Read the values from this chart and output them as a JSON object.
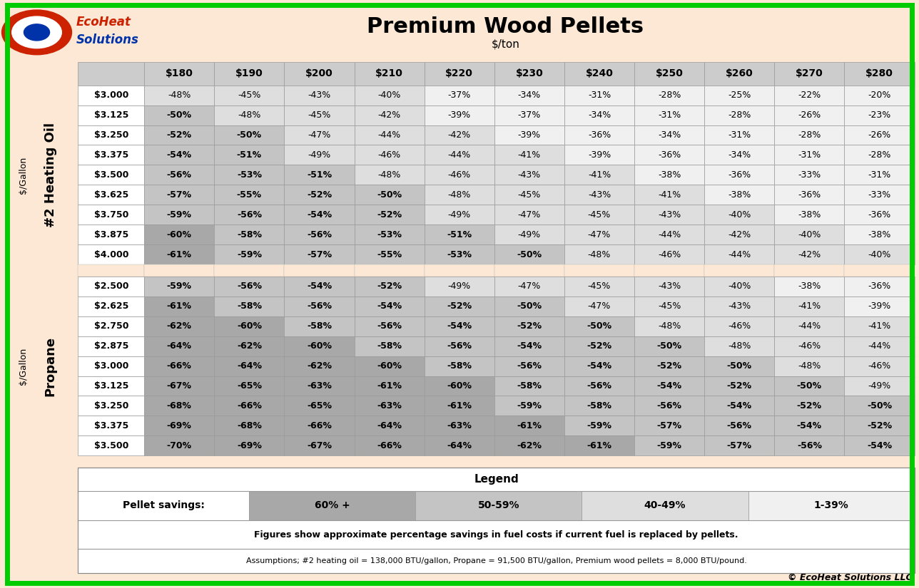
{
  "title": "Premium Wood Pellets",
  "subtitle": "$/ton",
  "background_color": "#fce8d5",
  "border_color": "#00cc00",
  "pellet_cols": [
    "$180",
    "$190",
    "$200",
    "$210",
    "$220",
    "$230",
    "$240",
    "$250",
    "$260",
    "$270",
    "$280"
  ],
  "oil_rows": [
    "$3.000",
    "$3.125",
    "$3.250",
    "$3.375",
    "$3.500",
    "$3.625",
    "$3.750",
    "$3.875",
    "$4.000"
  ],
  "propane_rows": [
    "$2.500",
    "$2.625",
    "$2.750",
    "$2.875",
    "$3.000",
    "$3.125",
    "$3.250",
    "$3.375",
    "$3.500"
  ],
  "oil_data": [
    [
      "-48%",
      "-45%",
      "-43%",
      "-40%",
      "-37%",
      "-34%",
      "-31%",
      "-28%",
      "-25%",
      "-22%",
      "-20%"
    ],
    [
      "-50%",
      "-48%",
      "-45%",
      "-42%",
      "-39%",
      "-37%",
      "-34%",
      "-31%",
      "-28%",
      "-26%",
      "-23%"
    ],
    [
      "-52%",
      "-50%",
      "-47%",
      "-44%",
      "-42%",
      "-39%",
      "-36%",
      "-34%",
      "-31%",
      "-28%",
      "-26%"
    ],
    [
      "-54%",
      "-51%",
      "-49%",
      "-46%",
      "-44%",
      "-41%",
      "-39%",
      "-36%",
      "-34%",
      "-31%",
      "-28%"
    ],
    [
      "-56%",
      "-53%",
      "-51%",
      "-48%",
      "-46%",
      "-43%",
      "-41%",
      "-38%",
      "-36%",
      "-33%",
      "-31%"
    ],
    [
      "-57%",
      "-55%",
      "-52%",
      "-50%",
      "-48%",
      "-45%",
      "-43%",
      "-41%",
      "-38%",
      "-36%",
      "-33%"
    ],
    [
      "-59%",
      "-56%",
      "-54%",
      "-52%",
      "-49%",
      "-47%",
      "-45%",
      "-43%",
      "-40%",
      "-38%",
      "-36%"
    ],
    [
      "-60%",
      "-58%",
      "-56%",
      "-53%",
      "-51%",
      "-49%",
      "-47%",
      "-44%",
      "-42%",
      "-40%",
      "-38%"
    ],
    [
      "-61%",
      "-59%",
      "-57%",
      "-55%",
      "-53%",
      "-50%",
      "-48%",
      "-46%",
      "-44%",
      "-42%",
      "-40%"
    ]
  ],
  "propane_data": [
    [
      "-59%",
      "-56%",
      "-54%",
      "-52%",
      "-49%",
      "-47%",
      "-45%",
      "-43%",
      "-40%",
      "-38%",
      "-36%"
    ],
    [
      "-61%",
      "-58%",
      "-56%",
      "-54%",
      "-52%",
      "-50%",
      "-47%",
      "-45%",
      "-43%",
      "-41%",
      "-39%"
    ],
    [
      "-62%",
      "-60%",
      "-58%",
      "-56%",
      "-54%",
      "-52%",
      "-50%",
      "-48%",
      "-46%",
      "-44%",
      "-41%"
    ],
    [
      "-64%",
      "-62%",
      "-60%",
      "-58%",
      "-56%",
      "-54%",
      "-52%",
      "-50%",
      "-48%",
      "-46%",
      "-44%"
    ],
    [
      "-66%",
      "-64%",
      "-62%",
      "-60%",
      "-58%",
      "-56%",
      "-54%",
      "-52%",
      "-50%",
      "-48%",
      "-46%"
    ],
    [
      "-67%",
      "-65%",
      "-63%",
      "-61%",
      "-60%",
      "-58%",
      "-56%",
      "-54%",
      "-52%",
      "-50%",
      "-49%"
    ],
    [
      "-68%",
      "-66%",
      "-65%",
      "-63%",
      "-61%",
      "-59%",
      "-58%",
      "-56%",
      "-54%",
      "-52%",
      "-50%"
    ],
    [
      "-69%",
      "-68%",
      "-66%",
      "-64%",
      "-63%",
      "-61%",
      "-59%",
      "-57%",
      "-56%",
      "-54%",
      "-52%"
    ],
    [
      "-70%",
      "-69%",
      "-67%",
      "-66%",
      "-64%",
      "-62%",
      "-61%",
      "-59%",
      "-57%",
      "-56%",
      "-54%"
    ]
  ],
  "color_60plus": "#a8a8a8",
  "color_50_59": "#c4c4c4",
  "color_40_49": "#dedede",
  "color_1_39": "#f0f0f0",
  "color_header": "#cccccc",
  "color_row_label": "#ffffff",
  "color_spacer": "#fce8d5",
  "ecoheat_red": "#cc2200",
  "ecoheat_blue": "#0033aa",
  "legend_title": "Legend",
  "legend_pellet_savings": "Pellet savings:",
  "legend_60plus": "60% +",
  "legend_50_59": "50-59%",
  "legend_40_49": "40-49%",
  "legend_1_39": "1-39%",
  "footnote1": "Figures show approximate percentage savings in fuel costs if current fuel is replaced by pellets.",
  "footnote2": "Assumptions; #2 heating oil = 138,000 BTU/gallon, Propane = 91,500 BTU/gallon, Premium wood pellets = 8,000 BTU/pound.",
  "copyright": "© EcoHeat Solutions LLC"
}
